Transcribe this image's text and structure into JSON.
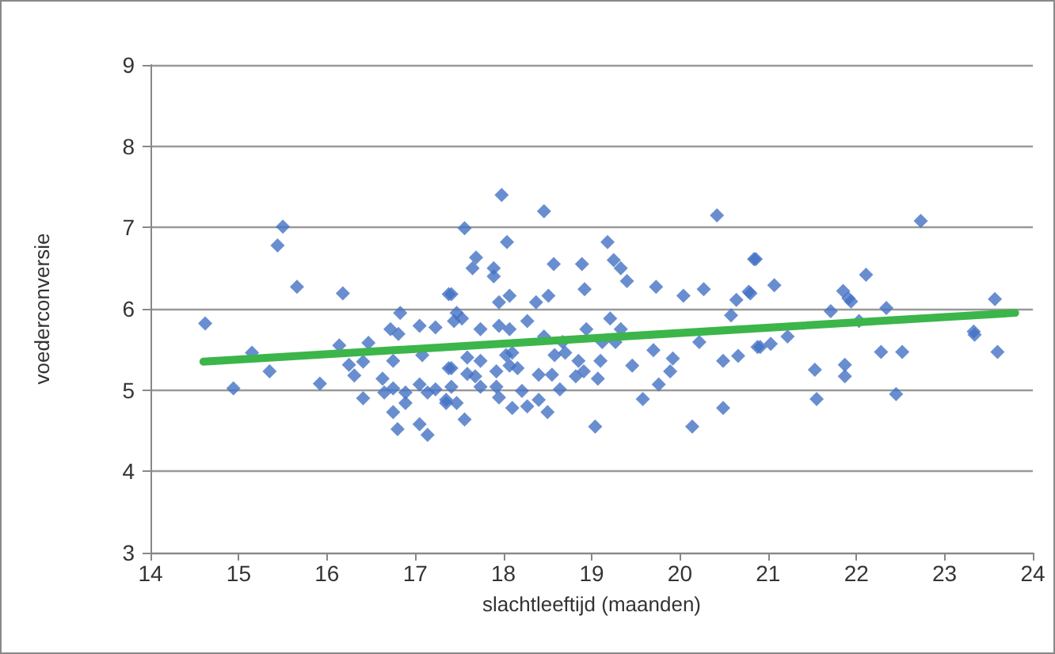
{
  "chart_data": {
    "type": "scatter",
    "xlabel": "slachtleeftijd (maanden)",
    "ylabel": "voederconversie",
    "xlim": [
      14,
      24
    ],
    "xticks": [
      14,
      15,
      16,
      17,
      18,
      19,
      20,
      21,
      22,
      23,
      24
    ],
    "ylim": [
      3,
      9
    ],
    "yticks": [
      3,
      4,
      5,
      6,
      7,
      8,
      9
    ],
    "grid": "y",
    "marker": "diamond",
    "series": [
      {
        "color": "#4472c4",
        "x": [
          14.62,
          15.5,
          15.44,
          15.66,
          14.94,
          15.15,
          15.35,
          15.92,
          16.18,
          16.14,
          16.25,
          16.31,
          16.41,
          16.41,
          16.47,
          16.63,
          16.65,
          16.75,
          16.75,
          16.75,
          16.8,
          16.83,
          16.72,
          16.81,
          16.89,
          16.89,
          17.05,
          17.05,
          17.05,
          17.14,
          17.08,
          17.14,
          17.23,
          17.23,
          17.35,
          17.38,
          17.38,
          17.98,
          18.46,
          17.56,
          18.04,
          17.69,
          17.65,
          17.89,
          17.89,
          18.57,
          18.89,
          19.18,
          19.25,
          19.33,
          19.4,
          18.92,
          19.73,
          20.04,
          20.27,
          20.42,
          20.84,
          20.78,
          20.64,
          20.58,
          17.41,
          17.47,
          17.53,
          17.44,
          17.74,
          17.95,
          18.07,
          17.95,
          18.07,
          18.27,
          18.37,
          18.51,
          18.46,
          18.67,
          18.94,
          19.21,
          19.33,
          19.27,
          19.12,
          17.59,
          17.74,
          17.41,
          17.68,
          17.59,
          17.74,
          17.41,
          17.47,
          17.35,
          17.56,
          17.92,
          17.92,
          17.95,
          18.03,
          18.1,
          18.16,
          18.07,
          18.21,
          18.1,
          18.27,
          18.4,
          18.4,
          18.5,
          18.55,
          18.64,
          18.58,
          18.7,
          18.85,
          18.91,
          18.82,
          19.1,
          19.07,
          19.04,
          19.46,
          19.58,
          19.7,
          19.76,
          19.89,
          19.92,
          20.22,
          20.14,
          20.49,
          20.49,
          20.66,
          20.88,
          20.86,
          20.8,
          21.07,
          20.91,
          21.03,
          21.22,
          22.73,
          22.11,
          21.85,
          21.91,
          21.94,
          21.71,
          22.34,
          22.03,
          21.53,
          21.55,
          21.87,
          21.87,
          22.28,
          22.52,
          22.45,
          23.33,
          23.34,
          23.57,
          23.6
        ],
        "values": [
          5.82,
          7.01,
          6.78,
          6.27,
          5.02,
          5.46,
          5.23,
          5.08,
          6.19,
          5.55,
          5.31,
          5.18,
          5.35,
          4.9,
          5.58,
          5.14,
          4.97,
          5.02,
          5.36,
          4.73,
          4.52,
          5.95,
          5.75,
          5.69,
          4.97,
          4.84,
          5.79,
          5.07,
          4.58,
          4.45,
          5.43,
          4.97,
          5.77,
          5.01,
          4.84,
          6.18,
          5.27,
          7.4,
          7.2,
          6.99,
          6.82,
          6.63,
          6.5,
          6.5,
          6.4,
          6.55,
          6.55,
          6.82,
          6.6,
          6.5,
          6.34,
          6.24,
          6.27,
          6.16,
          6.24,
          7.15,
          6.61,
          6.21,
          6.11,
          5.92,
          6.18,
          5.95,
          5.88,
          5.85,
          5.75,
          6.08,
          6.16,
          5.79,
          5.75,
          5.85,
          6.08,
          6.16,
          5.66,
          5.59,
          5.75,
          5.88,
          5.75,
          5.59,
          5.59,
          5.4,
          5.36,
          5.27,
          5.17,
          5.2,
          5.04,
          5.04,
          4.84,
          4.88,
          4.64,
          5.23,
          5.04,
          4.91,
          5.43,
          5.46,
          5.27,
          5.3,
          4.99,
          4.78,
          4.8,
          5.19,
          4.88,
          4.73,
          5.19,
          5.01,
          5.43,
          5.46,
          5.36,
          5.23,
          5.17,
          5.36,
          5.14,
          4.55,
          5.3,
          4.89,
          5.49,
          5.07,
          5.23,
          5.39,
          5.59,
          4.55,
          5.36,
          4.78,
          5.42,
          5.53,
          6.61,
          6.19,
          6.29,
          5.53,
          5.57,
          5.66,
          7.08,
          6.42,
          6.22,
          6.13,
          6.09,
          5.97,
          6.01,
          5.85,
          5.25,
          4.89,
          5.31,
          5.17,
          5.47,
          5.47,
          4.95,
          5.72,
          5.68,
          6.12,
          5.47
        ]
      },
      {
        "type": "line",
        "color": "#3cb54a",
        "marker": "none",
        "x": [
          14.6,
          23.8
        ],
        "values": [
          5.35,
          5.95
        ]
      }
    ]
  }
}
